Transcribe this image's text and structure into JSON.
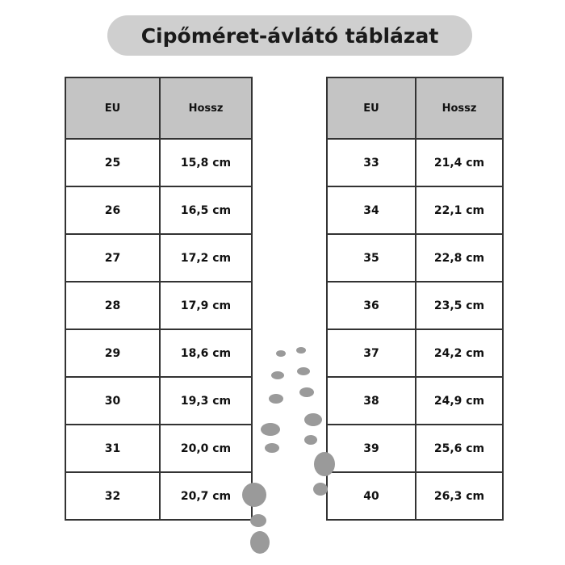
{
  "header": {
    "title": "Cipőméret-ávlátó táblázat"
  },
  "tables": [
    {
      "columns": [
        "EU",
        "Hossz"
      ],
      "rows": [
        [
          "25",
          "15,8 cm"
        ],
        [
          "26",
          "16,5 cm"
        ],
        [
          "27",
          "17,2 cm"
        ],
        [
          "28",
          "17,9 cm"
        ],
        [
          "29",
          "18,6 cm"
        ],
        [
          "30",
          "19,3 cm"
        ],
        [
          "31",
          "20,0 cm"
        ],
        [
          "32",
          "20,7 cm"
        ]
      ]
    },
    {
      "columns": [
        "EU",
        "Hossz"
      ],
      "rows": [
        [
          "33",
          "21,4 cm"
        ],
        [
          "34",
          "22,1 cm"
        ],
        [
          "35",
          "22,8 cm"
        ],
        [
          "36",
          "23,5 cm"
        ],
        [
          "37",
          "24,2 cm"
        ],
        [
          "38",
          "24,9 cm"
        ],
        [
          "39",
          "25,6 cm"
        ],
        [
          "40",
          "26,3 cm"
        ]
      ]
    }
  ]
}
